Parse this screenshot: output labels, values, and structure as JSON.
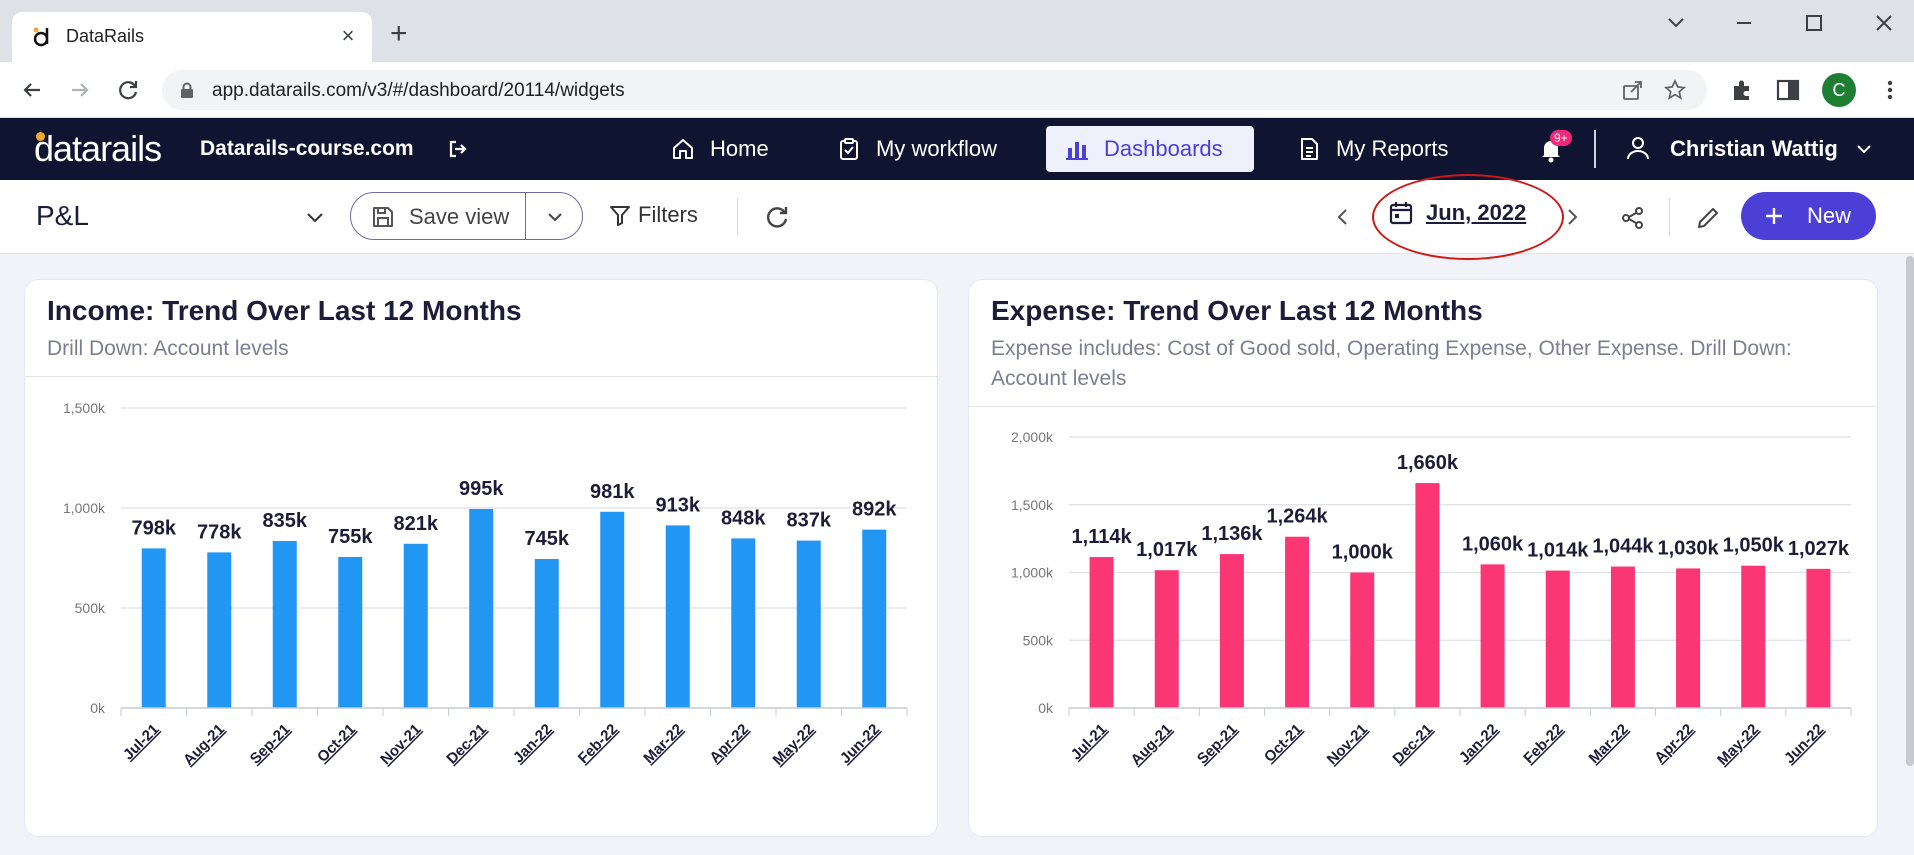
{
  "browser": {
    "tab_title": "DataRails",
    "url": "app.datarails.com/v3/#/dashboard/20114/widgets",
    "profile_initial": "C"
  },
  "app": {
    "logo": "datarails",
    "site": "Datarails-course.com",
    "nav": [
      {
        "label": "Home",
        "icon": "home-icon"
      },
      {
        "label": "My workflow",
        "icon": "clipboard-check-icon"
      },
      {
        "label": "Dashboards",
        "icon": "bar-chart-icon",
        "active": true
      },
      {
        "label": "My Reports",
        "icon": "document-icon"
      }
    ],
    "notifications_badge": "9+",
    "user_name": "Christian Wattig"
  },
  "toolbar": {
    "page_title": "P&L",
    "save_view_label": "Save view",
    "filters_label": "Filters",
    "date_label": "Jun, 2022",
    "new_label": "New"
  },
  "colors": {
    "nav_bg": "#0f1531",
    "accent": "#4b3fd6",
    "income_bar": "#2196f3",
    "expense_bar": "#fb3674",
    "annotation": "#d01818"
  },
  "cards": [
    {
      "title": "Income: Trend Over Last 12 Months",
      "subtitle": "Drill Down: Account levels",
      "subtitle_line2": ""
    },
    {
      "title": "Expense: Trend Over Last 12 Months",
      "subtitle": "Expense includes: Cost of Good sold, Operating Expense, Other Expense. Drill Down:",
      "subtitle_line2": "Account levels"
    }
  ],
  "chart_data": [
    {
      "type": "bar",
      "title": "Income: Trend Over Last 12 Months",
      "categories": [
        "Jul-21",
        "Aug-21",
        "Sep-21",
        "Oct-21",
        "Nov-21",
        "Dec-21",
        "Jan-22",
        "Feb-22",
        "Mar-22",
        "Apr-22",
        "May-22",
        "Jun-22"
      ],
      "values": [
        798,
        778,
        835,
        755,
        821,
        995,
        745,
        981,
        913,
        848,
        837,
        892
      ],
      "labels": [
        "798k",
        "778k",
        "835k",
        "755k",
        "821k",
        "995k",
        "745k",
        "981k",
        "913k",
        "848k",
        "837k",
        "892k"
      ],
      "yticks": [
        "0k",
        "500k",
        "1,000k",
        "1,500k"
      ],
      "ytick_values": [
        0,
        500,
        1000,
        1500
      ],
      "ylim": [
        0,
        1500
      ],
      "grid": true
    },
    {
      "type": "bar",
      "title": "Expense: Trend Over Last 12 Months",
      "categories": [
        "Jul-21",
        "Aug-21",
        "Sep-21",
        "Oct-21",
        "Nov-21",
        "Dec-21",
        "Jan-22",
        "Feb-22",
        "Mar-22",
        "Apr-22",
        "May-22",
        "Jun-22"
      ],
      "values": [
        1114,
        1017,
        1136,
        1264,
        1000,
        1660,
        1060,
        1014,
        1044,
        1030,
        1050,
        1027
      ],
      "labels": [
        "1,114k",
        "1,017k",
        "1,136k",
        "1,264k",
        "1,000k",
        "1,660k",
        "1,060k",
        "1,014k",
        "1,044k",
        "1,030k",
        "1,050k",
        "1,027k"
      ],
      "yticks": [
        "0k",
        "500k",
        "1,000k",
        "1,500k",
        "2,000k"
      ],
      "ytick_values": [
        0,
        500,
        1000,
        1500,
        2000
      ],
      "ylim": [
        0,
        2000
      ],
      "grid": true
    }
  ]
}
